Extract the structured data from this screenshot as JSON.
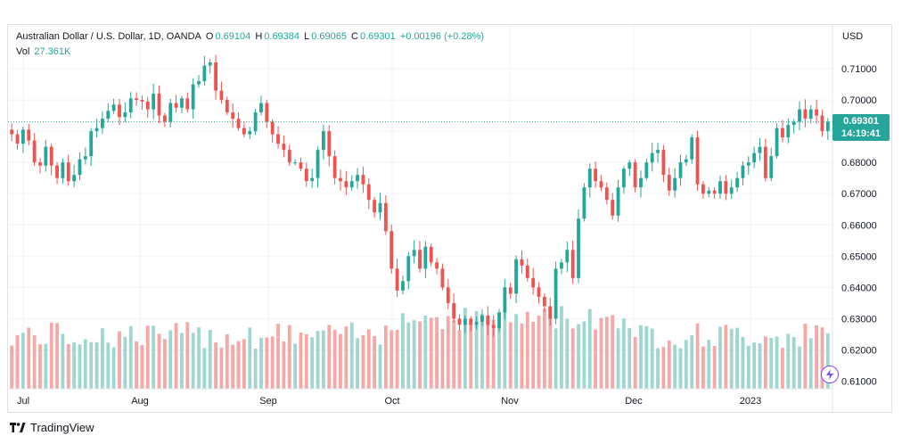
{
  "legend": {
    "symbol": "Australian Dollar / U.S. Dollar, 1D, OANDA",
    "o_label": "O",
    "o_value": "0.69104",
    "h_label": "H",
    "h_value": "0.69384",
    "l_label": "L",
    "l_value": "0.69065",
    "c_label": "C",
    "c_value": "0.69301",
    "change": "+0.00196 (+0.28%)",
    "vol_label": "Vol",
    "vol_value": "27.361K"
  },
  "price_axis": {
    "currency": "USD",
    "ticks": [
      "0.71000",
      "0.70000",
      "0.69000",
      "0.68000",
      "0.67000",
      "0.66000",
      "0.65000",
      "0.64000",
      "0.63000",
      "0.62000",
      "0.61000"
    ]
  },
  "price_tag": {
    "price": "0.69301",
    "countdown": "14:19:41"
  },
  "time_axis": {
    "ticks": [
      "Jul",
      "Aug",
      "Sep",
      "Oct",
      "Nov",
      "Dec",
      "2023"
    ]
  },
  "brand": {
    "name": "TradingView"
  },
  "colors": {
    "up": "#26a69a",
    "down": "#ef5350",
    "vol_up": "#a0d6d0",
    "vol_down": "#f5a8a6",
    "grid": "#f0f3fa"
  },
  "chart_data": {
    "type": "candlestick",
    "title": "Australian Dollar / U.S. Dollar, 1D, OANDA",
    "y_unit": "USD",
    "ylim": [
      0.607,
      0.714
    ],
    "x_ticks": [
      "Jul",
      "Aug",
      "Sep",
      "Oct",
      "Nov",
      "Dec",
      "2023"
    ],
    "grid": true,
    "last_price": 0.69301,
    "close": [
      0.689,
      0.686,
      0.6905,
      0.687,
      0.68,
      0.679,
      0.685,
      0.679,
      0.675,
      0.68,
      0.674,
      0.676,
      0.681,
      0.682,
      0.69,
      0.691,
      0.694,
      0.6965,
      0.6985,
      0.6945,
      0.696,
      0.7005,
      0.7,
      0.6995,
      0.697,
      0.702,
      0.695,
      0.693,
      0.699,
      0.6975,
      0.7005,
      0.697,
      0.705,
      0.706,
      0.711,
      0.712,
      0.703,
      0.7,
      0.696,
      0.694,
      0.691,
      0.689,
      0.69,
      0.696,
      0.699,
      0.693,
      0.689,
      0.686,
      0.684,
      0.68,
      0.68,
      0.678,
      0.674,
      0.675,
      0.684,
      0.69,
      0.682,
      0.675,
      0.674,
      0.672,
      0.674,
      0.676,
      0.673,
      0.668,
      0.664,
      0.667,
      0.658,
      0.646,
      0.639,
      0.642,
      0.65,
      0.652,
      0.646,
      0.653,
      0.648,
      0.646,
      0.64,
      0.635,
      0.63,
      0.628,
      0.63,
      0.628,
      0.629,
      0.631,
      0.628,
      0.627,
      0.632,
      0.64,
      0.638,
      0.649,
      0.647,
      0.643,
      0.64,
      0.637,
      0.634,
      0.63,
      0.646,
      0.648,
      0.652,
      0.643,
      0.662,
      0.672,
      0.678,
      0.674,
      0.672,
      0.668,
      0.663,
      0.672,
      0.678,
      0.68,
      0.672,
      0.675,
      0.68,
      0.683,
      0.684,
      0.676,
      0.671,
      0.675,
      0.68,
      0.681,
      0.688,
      0.673,
      0.67,
      0.671,
      0.67,
      0.674,
      0.67,
      0.672,
      0.675,
      0.679,
      0.68,
      0.683,
      0.685,
      0.675,
      0.682,
      0.691,
      0.688,
      0.692,
      0.693,
      0.697,
      0.694,
      0.697,
      0.695,
      0.69,
      0.693
    ]
  }
}
